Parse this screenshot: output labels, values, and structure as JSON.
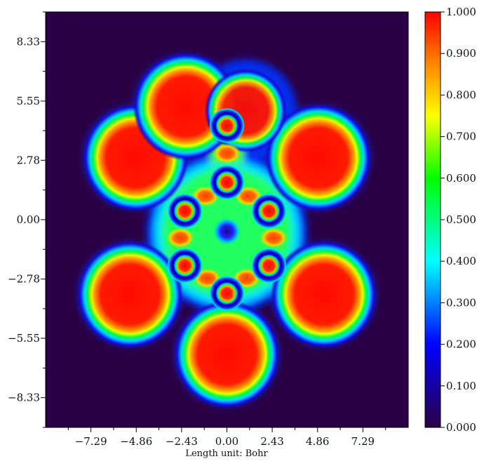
{
  "chart_data": {
    "type": "heatmap",
    "title": "",
    "xlabel": "Length unit: Bohr",
    "ylabel": "",
    "x_ticks": [
      -7.29,
      -4.86,
      -2.43,
      0.0,
      2.43,
      4.86,
      7.29
    ],
    "x_tick_labels": [
      "−7.29",
      "−4.86",
      "−2.43",
      "0.00",
      "2.43",
      "4.86",
      "7.29"
    ],
    "y_ticks": [
      8.33,
      5.55,
      2.78,
      0.0,
      -2.78,
      -5.55,
      -8.33
    ],
    "y_tick_labels": [
      "8.33",
      "5.55",
      "2.78",
      "0.00",
      "−2.78",
      "−5.55",
      "−8.33"
    ],
    "xlim": [
      -9.72,
      9.72
    ],
    "ylim": [
      -9.72,
      9.72
    ],
    "colorbar": {
      "min": 0.0,
      "max": 1.0,
      "ticks": [
        0.0,
        0.1,
        0.2,
        0.3,
        0.4,
        0.5,
        0.6,
        0.7,
        0.8,
        0.9,
        1.0
      ],
      "tick_labels": [
        "0.000",
        "0.100",
        "0.200",
        "0.300",
        "0.400",
        "0.500",
        "0.600",
        "0.700",
        "0.800",
        "0.900",
        "1.000"
      ]
    },
    "colormap": [
      "#2a0045",
      "#0000ff",
      "#00ffff",
      "#00ff00",
      "#ffff00",
      "#ff0000"
    ],
    "field_features": [
      {
        "kind": "lobe",
        "x": -4.9,
        "y": 2.9,
        "value": 1.0
      },
      {
        "kind": "lobe",
        "x": 4.9,
        "y": 2.9,
        "value": 1.0
      },
      {
        "kind": "lobe",
        "x": -5.2,
        "y": -3.5,
        "value": 1.0
      },
      {
        "kind": "lobe",
        "x": 5.2,
        "y": -3.5,
        "value": 1.0
      },
      {
        "kind": "lobe",
        "x": 0.0,
        "y": -6.3,
        "value": 1.0
      },
      {
        "kind": "lobe",
        "x": -2.2,
        "y": 5.3,
        "value": 1.0
      },
      {
        "kind": "lobe",
        "x": 1.0,
        "y": 5.1,
        "value": 0.95
      },
      {
        "kind": "atom_core",
        "x": 0.0,
        "y": 4.4
      },
      {
        "kind": "atom_core",
        "x": 0.0,
        "y": 1.75
      },
      {
        "kind": "atom_core",
        "x": -2.25,
        "y": 0.4
      },
      {
        "kind": "atom_core",
        "x": 2.25,
        "y": 0.4
      },
      {
        "kind": "atom_core",
        "x": -2.25,
        "y": -2.15
      },
      {
        "kind": "atom_core",
        "x": 2.25,
        "y": -2.15
      },
      {
        "kind": "atom_core",
        "x": 0.0,
        "y": -3.45
      },
      {
        "kind": "bond",
        "x": 0.0,
        "y": 3.1
      },
      {
        "kind": "bond",
        "x": -1.15,
        "y": 1.1
      },
      {
        "kind": "bond",
        "x": 1.15,
        "y": 1.1
      },
      {
        "kind": "bond",
        "x": -2.5,
        "y": -0.85
      },
      {
        "kind": "bond",
        "x": 2.5,
        "y": -0.85
      },
      {
        "kind": "bond",
        "x": -1.05,
        "y": -2.75
      },
      {
        "kind": "bond",
        "x": 1.05,
        "y": -2.75
      }
    ]
  }
}
